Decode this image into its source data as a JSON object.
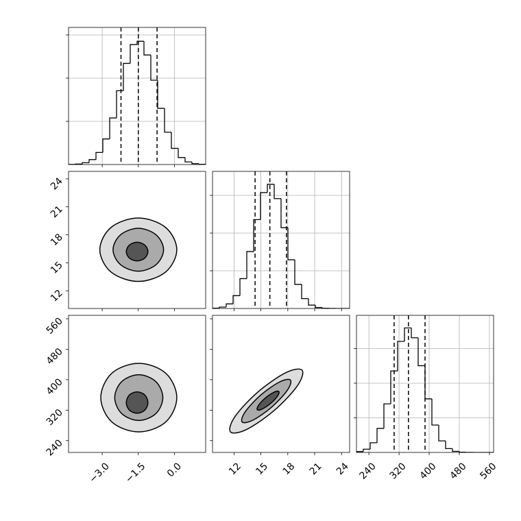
{
  "chart_data": [
    {
      "type": "histogram",
      "color": "#000000",
      "grid": true,
      "bins": [
        -4.4,
        -4.115,
        -3.83,
        -3.545,
        -3.26,
        -2.975,
        -2.69,
        -2.405,
        -2.12,
        -1.835,
        -1.55,
        -1.265,
        -0.98,
        -0.695,
        -0.41,
        -0.125,
        0.16,
        0.445,
        0.73,
        1.015,
        1.3
      ],
      "counts": [
        2,
        6,
        21,
        57,
        140,
        296,
        539,
        855,
        1171,
        1389,
        1427,
        1268,
        976,
        650,
        374,
        187,
        81,
        30,
        10,
        3
      ],
      "quantiles": [
        -2.22,
        -1.5,
        -0.72
      ],
      "xlim": [
        -4.4,
        1.3
      ],
      "xticks": [
        {
          "value": -3,
          "label": "−3.0"
        },
        {
          "value": -1.5,
          "label": "−1.5"
        },
        {
          "value": 0,
          "label": "0.0"
        }
      ],
      "ylim": [
        0,
        1587
      ],
      "yticks": [
        500,
        1000,
        1500
      ]
    },
    {
      "type": "contour",
      "color": "#000000",
      "fill_colors": [
        "#dddddd",
        "#aaaaaa",
        "#555555"
      ],
      "contours": [
        {
          "x": [
            0.1,
            -0.37,
            -1.5,
            -2.63,
            -3.1,
            -2.63,
            -1.5,
            -0.37
          ],
          "y": [
            16.4,
            18.8,
            19.8,
            18.8,
            16.4,
            14.0,
            13.0,
            14.0
          ]
        },
        {
          "x": [
            -0.45,
            -0.76,
            -1.5,
            -2.24,
            -2.55,
            -2.24,
            -1.5,
            -0.76
          ],
          "y": [
            16.4,
            18.0,
            18.7,
            18.0,
            16.4,
            14.8,
            14.1,
            14.8
          ]
        },
        {
          "x": [
            -1.1,
            -1.23,
            -1.55,
            -1.87,
            -2.0,
            -1.87,
            -1.55,
            -1.23
          ],
          "y": [
            16.2,
            16.9,
            17.2,
            16.9,
            16.2,
            15.5,
            15.2,
            15.5
          ]
        }
      ],
      "xlim": [
        -4.4,
        1.3
      ],
      "xticks": [
        {
          "value": -3,
          "label": "−3.0"
        },
        {
          "value": -1.5,
          "label": "−1.5"
        },
        {
          "value": 0,
          "label": "0.0"
        }
      ],
      "ylim": [
        10.1,
        24.8
      ],
      "yticks": [
        12,
        15,
        18,
        21,
        24
      ]
    },
    {
      "type": "histogram",
      "color": "#000000",
      "grid": true,
      "bins": [
        9.6,
        10.365,
        11.13,
        11.895,
        12.66,
        13.425,
        14.19,
        14.955,
        15.72,
        16.485,
        17.25,
        18.015,
        18.78,
        19.545,
        20.31,
        21.075,
        21.84,
        22.605,
        23.37,
        24.135,
        24.9
      ],
      "counts": [
        4,
        18,
        61,
        170,
        396,
        755,
        1178,
        1537,
        1647,
        1457,
        1072,
        646,
        320,
        131,
        45,
        13,
        3,
        1,
        0,
        0
      ],
      "quantiles": [
        14.35,
        16.0,
        17.85
      ],
      "xlim": [
        9.6,
        24.9
      ],
      "xticks": [
        12,
        15,
        18,
        21,
        24
      ],
      "ylim": [
        0,
        1818
      ],
      "yticks": [
        500,
        1000,
        1500
      ]
    },
    {
      "type": "contour",
      "color": "#000000",
      "fill_colors": [
        "#dddddd",
        "#aaaaaa",
        "#555555"
      ],
      "contours": [
        {
          "x": [
            0.1,
            -0.36,
            -1.48,
            -2.6,
            -3.06,
            -2.6,
            -1.48,
            -0.36
          ],
          "y": [
            353,
            417,
            443,
            417,
            353,
            289,
            263,
            289
          ]
        },
        {
          "x": [
            -0.48,
            -0.77,
            -1.48,
            -2.19,
            -2.48,
            -2.19,
            -1.48,
            -0.77
          ],
          "y": [
            353,
            395,
            413,
            395,
            353,
            311,
            293,
            311
          ]
        },
        {
          "x": [
            -1.1,
            -1.23,
            -1.55,
            -1.87,
            -2.0,
            -1.87,
            -1.55,
            -1.23
          ],
          "y": [
            340,
            360,
            368,
            360,
            340,
            320,
            312,
            320
          ]
        }
      ],
      "xlim": [
        -4.4,
        1.3
      ],
      "xticks": [
        {
          "value": -3,
          "label": "−3.0"
        },
        {
          "value": -1.5,
          "label": "−1.5"
        },
        {
          "value": 0,
          "label": "0.0"
        }
      ],
      "ylim": [
        209,
        569
      ],
      "yticks": [
        240,
        320,
        400,
        480,
        560
      ]
    },
    {
      "type": "contour",
      "color": "#000000",
      "fill_colors": [
        "#dddddd",
        "#aaaaaa",
        "#555555"
      ],
      "contours": [
        {
          "x": [
            19.6,
            19.07,
            16.5,
            13.41,
            11.6,
            12.13,
            14.7,
            17.79
          ],
          "y": [
            425,
            384,
            319.5,
            269.4,
            263,
            304,
            368.5,
            418.6
          ]
        },
        {
          "x": [
            18.3,
            17.93,
            16.2,
            14.11,
            12.9,
            13.27,
            15.0,
            17.09
          ],
          "y": [
            399,
            371.6,
            328,
            293.8,
            289,
            316.4,
            360,
            394.2
          ]
        },
        {
          "x": [
            17.0,
            16.86,
            16.1,
            15.16,
            14.6,
            14.74,
            15.5,
            16.44
          ],
          "y": [
            369,
            357.1,
            338,
            323.1,
            321,
            332.9,
            352,
            366.9
          ]
        }
      ],
      "xlim": [
        9.6,
        24.9
      ],
      "xticks": [
        12,
        15,
        18,
        21,
        24
      ],
      "ylim": [
        209,
        569
      ],
      "yticks": [
        240,
        320,
        400,
        480,
        560
      ]
    },
    {
      "type": "histogram",
      "color": "#000000",
      "grid": true,
      "bins": [
        207,
        225.2,
        243.4,
        261.6,
        279.8,
        298,
        316.2,
        334.4,
        352.6,
        370.8,
        389,
        407.2,
        425.4,
        443.6,
        461.8,
        480,
        498.2,
        516.4,
        534.6,
        552.8,
        571
      ],
      "counts": [
        13,
        47,
        140,
        347,
        702,
        1177,
        1604,
        1798,
        1656,
        1253,
        774,
        396,
        167,
        56,
        16,
        4,
        1,
        0,
        0,
        0
      ],
      "quantiles": [
        307,
        345,
        389
      ],
      "xlim": [
        207,
        571
      ],
      "xticks": [
        240,
        320,
        400,
        480,
        560
      ],
      "ylim": [
        0,
        1980
      ],
      "yticks": [
        500,
        1000,
        1500
      ]
    }
  ]
}
